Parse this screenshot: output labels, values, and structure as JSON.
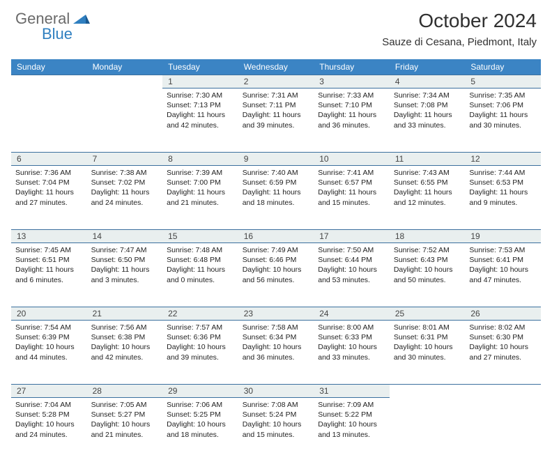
{
  "logo": {
    "text1": "General",
    "text2": "Blue"
  },
  "title": "October 2024",
  "location": "Sauze di Cesana, Piedmont, Italy",
  "colors": {
    "header_bg": "#3b84c4",
    "header_fg": "#ffffff",
    "daynum_bg": "#e9efef",
    "border": "#3b6f9e",
    "logo_gray": "#6a6a6a",
    "logo_blue": "#2f7fc0"
  },
  "weekdays": [
    "Sunday",
    "Monday",
    "Tuesday",
    "Wednesday",
    "Thursday",
    "Friday",
    "Saturday"
  ],
  "weeks": [
    [
      null,
      null,
      {
        "n": 1,
        "sr": "7:30 AM",
        "ss": "7:13 PM",
        "dl": "11 hours and 42 minutes."
      },
      {
        "n": 2,
        "sr": "7:31 AM",
        "ss": "7:11 PM",
        "dl": "11 hours and 39 minutes."
      },
      {
        "n": 3,
        "sr": "7:33 AM",
        "ss": "7:10 PM",
        "dl": "11 hours and 36 minutes."
      },
      {
        "n": 4,
        "sr": "7:34 AM",
        "ss": "7:08 PM",
        "dl": "11 hours and 33 minutes."
      },
      {
        "n": 5,
        "sr": "7:35 AM",
        "ss": "7:06 PM",
        "dl": "11 hours and 30 minutes."
      }
    ],
    [
      {
        "n": 6,
        "sr": "7:36 AM",
        "ss": "7:04 PM",
        "dl": "11 hours and 27 minutes."
      },
      {
        "n": 7,
        "sr": "7:38 AM",
        "ss": "7:02 PM",
        "dl": "11 hours and 24 minutes."
      },
      {
        "n": 8,
        "sr": "7:39 AM",
        "ss": "7:00 PM",
        "dl": "11 hours and 21 minutes."
      },
      {
        "n": 9,
        "sr": "7:40 AM",
        "ss": "6:59 PM",
        "dl": "11 hours and 18 minutes."
      },
      {
        "n": 10,
        "sr": "7:41 AM",
        "ss": "6:57 PM",
        "dl": "11 hours and 15 minutes."
      },
      {
        "n": 11,
        "sr": "7:43 AM",
        "ss": "6:55 PM",
        "dl": "11 hours and 12 minutes."
      },
      {
        "n": 12,
        "sr": "7:44 AM",
        "ss": "6:53 PM",
        "dl": "11 hours and 9 minutes."
      }
    ],
    [
      {
        "n": 13,
        "sr": "7:45 AM",
        "ss": "6:51 PM",
        "dl": "11 hours and 6 minutes."
      },
      {
        "n": 14,
        "sr": "7:47 AM",
        "ss": "6:50 PM",
        "dl": "11 hours and 3 minutes."
      },
      {
        "n": 15,
        "sr": "7:48 AM",
        "ss": "6:48 PM",
        "dl": "11 hours and 0 minutes."
      },
      {
        "n": 16,
        "sr": "7:49 AM",
        "ss": "6:46 PM",
        "dl": "10 hours and 56 minutes."
      },
      {
        "n": 17,
        "sr": "7:50 AM",
        "ss": "6:44 PM",
        "dl": "10 hours and 53 minutes."
      },
      {
        "n": 18,
        "sr": "7:52 AM",
        "ss": "6:43 PM",
        "dl": "10 hours and 50 minutes."
      },
      {
        "n": 19,
        "sr": "7:53 AM",
        "ss": "6:41 PM",
        "dl": "10 hours and 47 minutes."
      }
    ],
    [
      {
        "n": 20,
        "sr": "7:54 AM",
        "ss": "6:39 PM",
        "dl": "10 hours and 44 minutes."
      },
      {
        "n": 21,
        "sr": "7:56 AM",
        "ss": "6:38 PM",
        "dl": "10 hours and 42 minutes."
      },
      {
        "n": 22,
        "sr": "7:57 AM",
        "ss": "6:36 PM",
        "dl": "10 hours and 39 minutes."
      },
      {
        "n": 23,
        "sr": "7:58 AM",
        "ss": "6:34 PM",
        "dl": "10 hours and 36 minutes."
      },
      {
        "n": 24,
        "sr": "8:00 AM",
        "ss": "6:33 PM",
        "dl": "10 hours and 33 minutes."
      },
      {
        "n": 25,
        "sr": "8:01 AM",
        "ss": "6:31 PM",
        "dl": "10 hours and 30 minutes."
      },
      {
        "n": 26,
        "sr": "8:02 AM",
        "ss": "6:30 PM",
        "dl": "10 hours and 27 minutes."
      }
    ],
    [
      {
        "n": 27,
        "sr": "7:04 AM",
        "ss": "5:28 PM",
        "dl": "10 hours and 24 minutes."
      },
      {
        "n": 28,
        "sr": "7:05 AM",
        "ss": "5:27 PM",
        "dl": "10 hours and 21 minutes."
      },
      {
        "n": 29,
        "sr": "7:06 AM",
        "ss": "5:25 PM",
        "dl": "10 hours and 18 minutes."
      },
      {
        "n": 30,
        "sr": "7:08 AM",
        "ss": "5:24 PM",
        "dl": "10 hours and 15 minutes."
      },
      {
        "n": 31,
        "sr": "7:09 AM",
        "ss": "5:22 PM",
        "dl": "10 hours and 13 minutes."
      },
      null,
      null
    ]
  ],
  "labels": {
    "sunrise": "Sunrise:",
    "sunset": "Sunset:",
    "daylight": "Daylight:"
  }
}
